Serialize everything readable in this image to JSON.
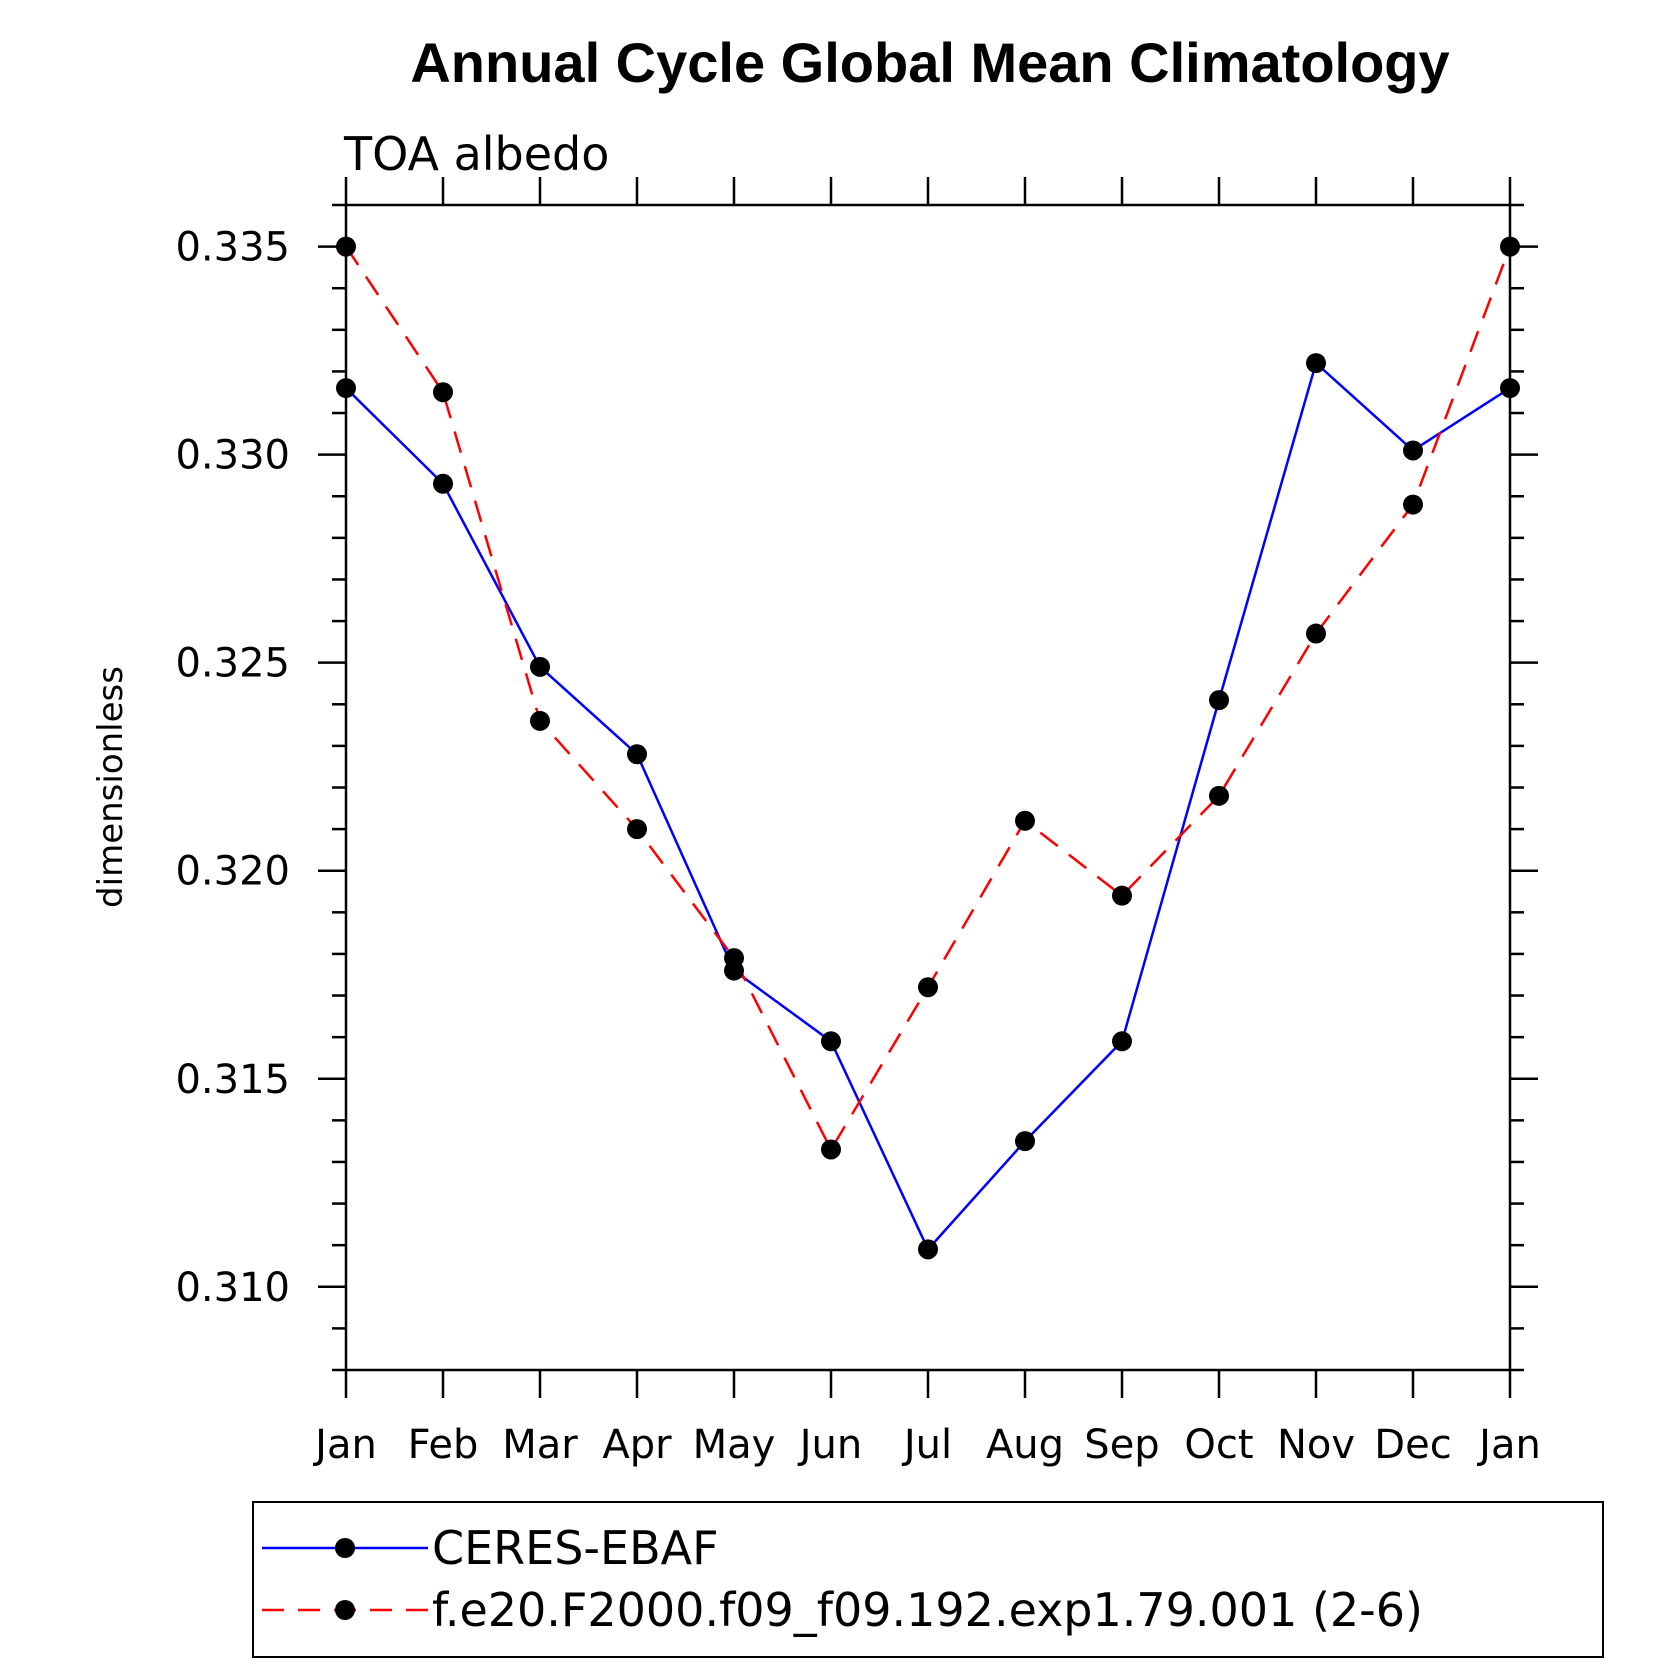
{
  "chart_data": {
    "type": "line",
    "title": "Annual Cycle Global Mean Climatology",
    "subtitle": "TOA albedo",
    "xlabel": "",
    "ylabel": "dimensionless",
    "categories": [
      "Jan",
      "Feb",
      "Mar",
      "Apr",
      "May",
      "Jun",
      "Jul",
      "Aug",
      "Sep",
      "Oct",
      "Nov",
      "Dec",
      "Jan"
    ],
    "ylim": [
      0.308,
      0.336
    ],
    "yticks": [
      "0.310",
      "0.315",
      "0.320",
      "0.325",
      "0.330",
      "0.335"
    ],
    "ytick_values": [
      0.31,
      0.315,
      0.32,
      0.325,
      0.33,
      0.335
    ],
    "grid": false,
    "legend_position": "bottom",
    "series": [
      {
        "name": "CERES-EBAF",
        "color": "#0000ff",
        "dash": "solid",
        "values": [
          0.3316,
          0.3293,
          0.3249,
          0.3228,
          0.3176,
          0.3159,
          0.3109,
          0.3135,
          0.3159,
          0.3241,
          0.3322,
          0.3301,
          0.3316
        ]
      },
      {
        "name": "f.e20.F2000.f09_f09.192.exp1.79.001 (2-6)",
        "color": "#ff0000",
        "dash": "dashed",
        "values": [
          0.335,
          0.3315,
          0.3236,
          0.321,
          0.3179,
          0.3133,
          0.3172,
          0.3212,
          0.3194,
          0.3218,
          0.3257,
          0.3288,
          0.335
        ]
      }
    ]
  }
}
